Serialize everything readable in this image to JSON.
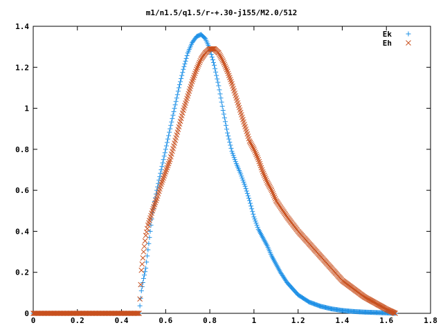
{
  "chart_data": {
    "type": "scatter",
    "title": "m1/n1.5/q1.5/r-+.30-j155/M2.0/512",
    "xlabel": "",
    "ylabel": "",
    "xlim": [
      0,
      1.8
    ],
    "ylim": [
      0,
      1.4
    ],
    "xticks": [
      "0",
      "0.2",
      "0.4",
      "0.6",
      "0.8",
      "1",
      "1.2",
      "1.4",
      "1.6",
      "1.8"
    ],
    "yticks": [
      "0",
      "0.2",
      "0.4",
      "0.6",
      "0.8",
      "1",
      "1.2",
      "1.4"
    ],
    "legend_position": "top-right",
    "grid": false,
    "series": [
      {
        "name": "Ek",
        "marker": "plus",
        "color": "#1e90e6",
        "x": [
          0.48,
          0.49,
          0.5,
          0.51,
          0.52,
          0.53,
          0.54,
          0.56,
          0.58,
          0.6,
          0.62,
          0.64,
          0.66,
          0.68,
          0.7,
          0.72,
          0.74,
          0.76,
          0.78,
          0.8,
          0.82,
          0.84,
          0.86,
          0.88,
          0.9,
          0.92,
          0.94,
          0.96,
          0.98,
          1.0,
          1.02,
          1.04,
          1.06,
          1.08,
          1.1,
          1.12,
          1.15,
          1.2,
          1.25,
          1.3,
          1.35,
          1.4,
          1.45,
          1.5,
          1.55,
          1.6,
          1.64
        ],
        "y": [
          0.0,
          0.11,
          0.17,
          0.22,
          0.31,
          0.4,
          0.49,
          0.6,
          0.7,
          0.8,
          0.9,
          1.0,
          1.1,
          1.19,
          1.27,
          1.32,
          1.35,
          1.36,
          1.34,
          1.29,
          1.21,
          1.11,
          0.99,
          0.88,
          0.79,
          0.73,
          0.68,
          0.62,
          0.55,
          0.47,
          0.41,
          0.37,
          0.33,
          0.28,
          0.24,
          0.2,
          0.15,
          0.09,
          0.055,
          0.035,
          0.022,
          0.014,
          0.009,
          0.006,
          0.004,
          0.002,
          0.0
        ]
      },
      {
        "name": "Eh",
        "marker": "cross",
        "color": "#c8501e",
        "x": [
          0.48,
          0.49,
          0.5,
          0.51,
          0.52,
          0.54,
          0.56,
          0.58,
          0.6,
          0.62,
          0.64,
          0.66,
          0.68,
          0.7,
          0.72,
          0.74,
          0.76,
          0.78,
          0.8,
          0.82,
          0.84,
          0.86,
          0.88,
          0.9,
          0.92,
          0.94,
          0.96,
          0.98,
          1.0,
          1.02,
          1.04,
          1.06,
          1.08,
          1.1,
          1.15,
          1.2,
          1.25,
          1.3,
          1.35,
          1.4,
          1.45,
          1.5,
          1.55,
          1.6,
          1.62,
          1.64
        ],
        "y": [
          0.0,
          0.21,
          0.3,
          0.38,
          0.43,
          0.5,
          0.56,
          0.63,
          0.69,
          0.75,
          0.83,
          0.91,
          0.99,
          1.06,
          1.13,
          1.19,
          1.24,
          1.27,
          1.29,
          1.29,
          1.27,
          1.23,
          1.18,
          1.12,
          1.05,
          0.98,
          0.91,
          0.84,
          0.8,
          0.75,
          0.69,
          0.64,
          0.6,
          0.55,
          0.47,
          0.4,
          0.34,
          0.28,
          0.22,
          0.16,
          0.12,
          0.08,
          0.05,
          0.02,
          0.01,
          0.0
        ]
      }
    ],
    "baseline_segments": [
      {
        "series": "Ek",
        "x_from": 0.0,
        "x_to": 0.48,
        "y": 0
      },
      {
        "series": "Eh",
        "x_from": 0.0,
        "x_to": 0.48,
        "y": 0
      }
    ]
  }
}
